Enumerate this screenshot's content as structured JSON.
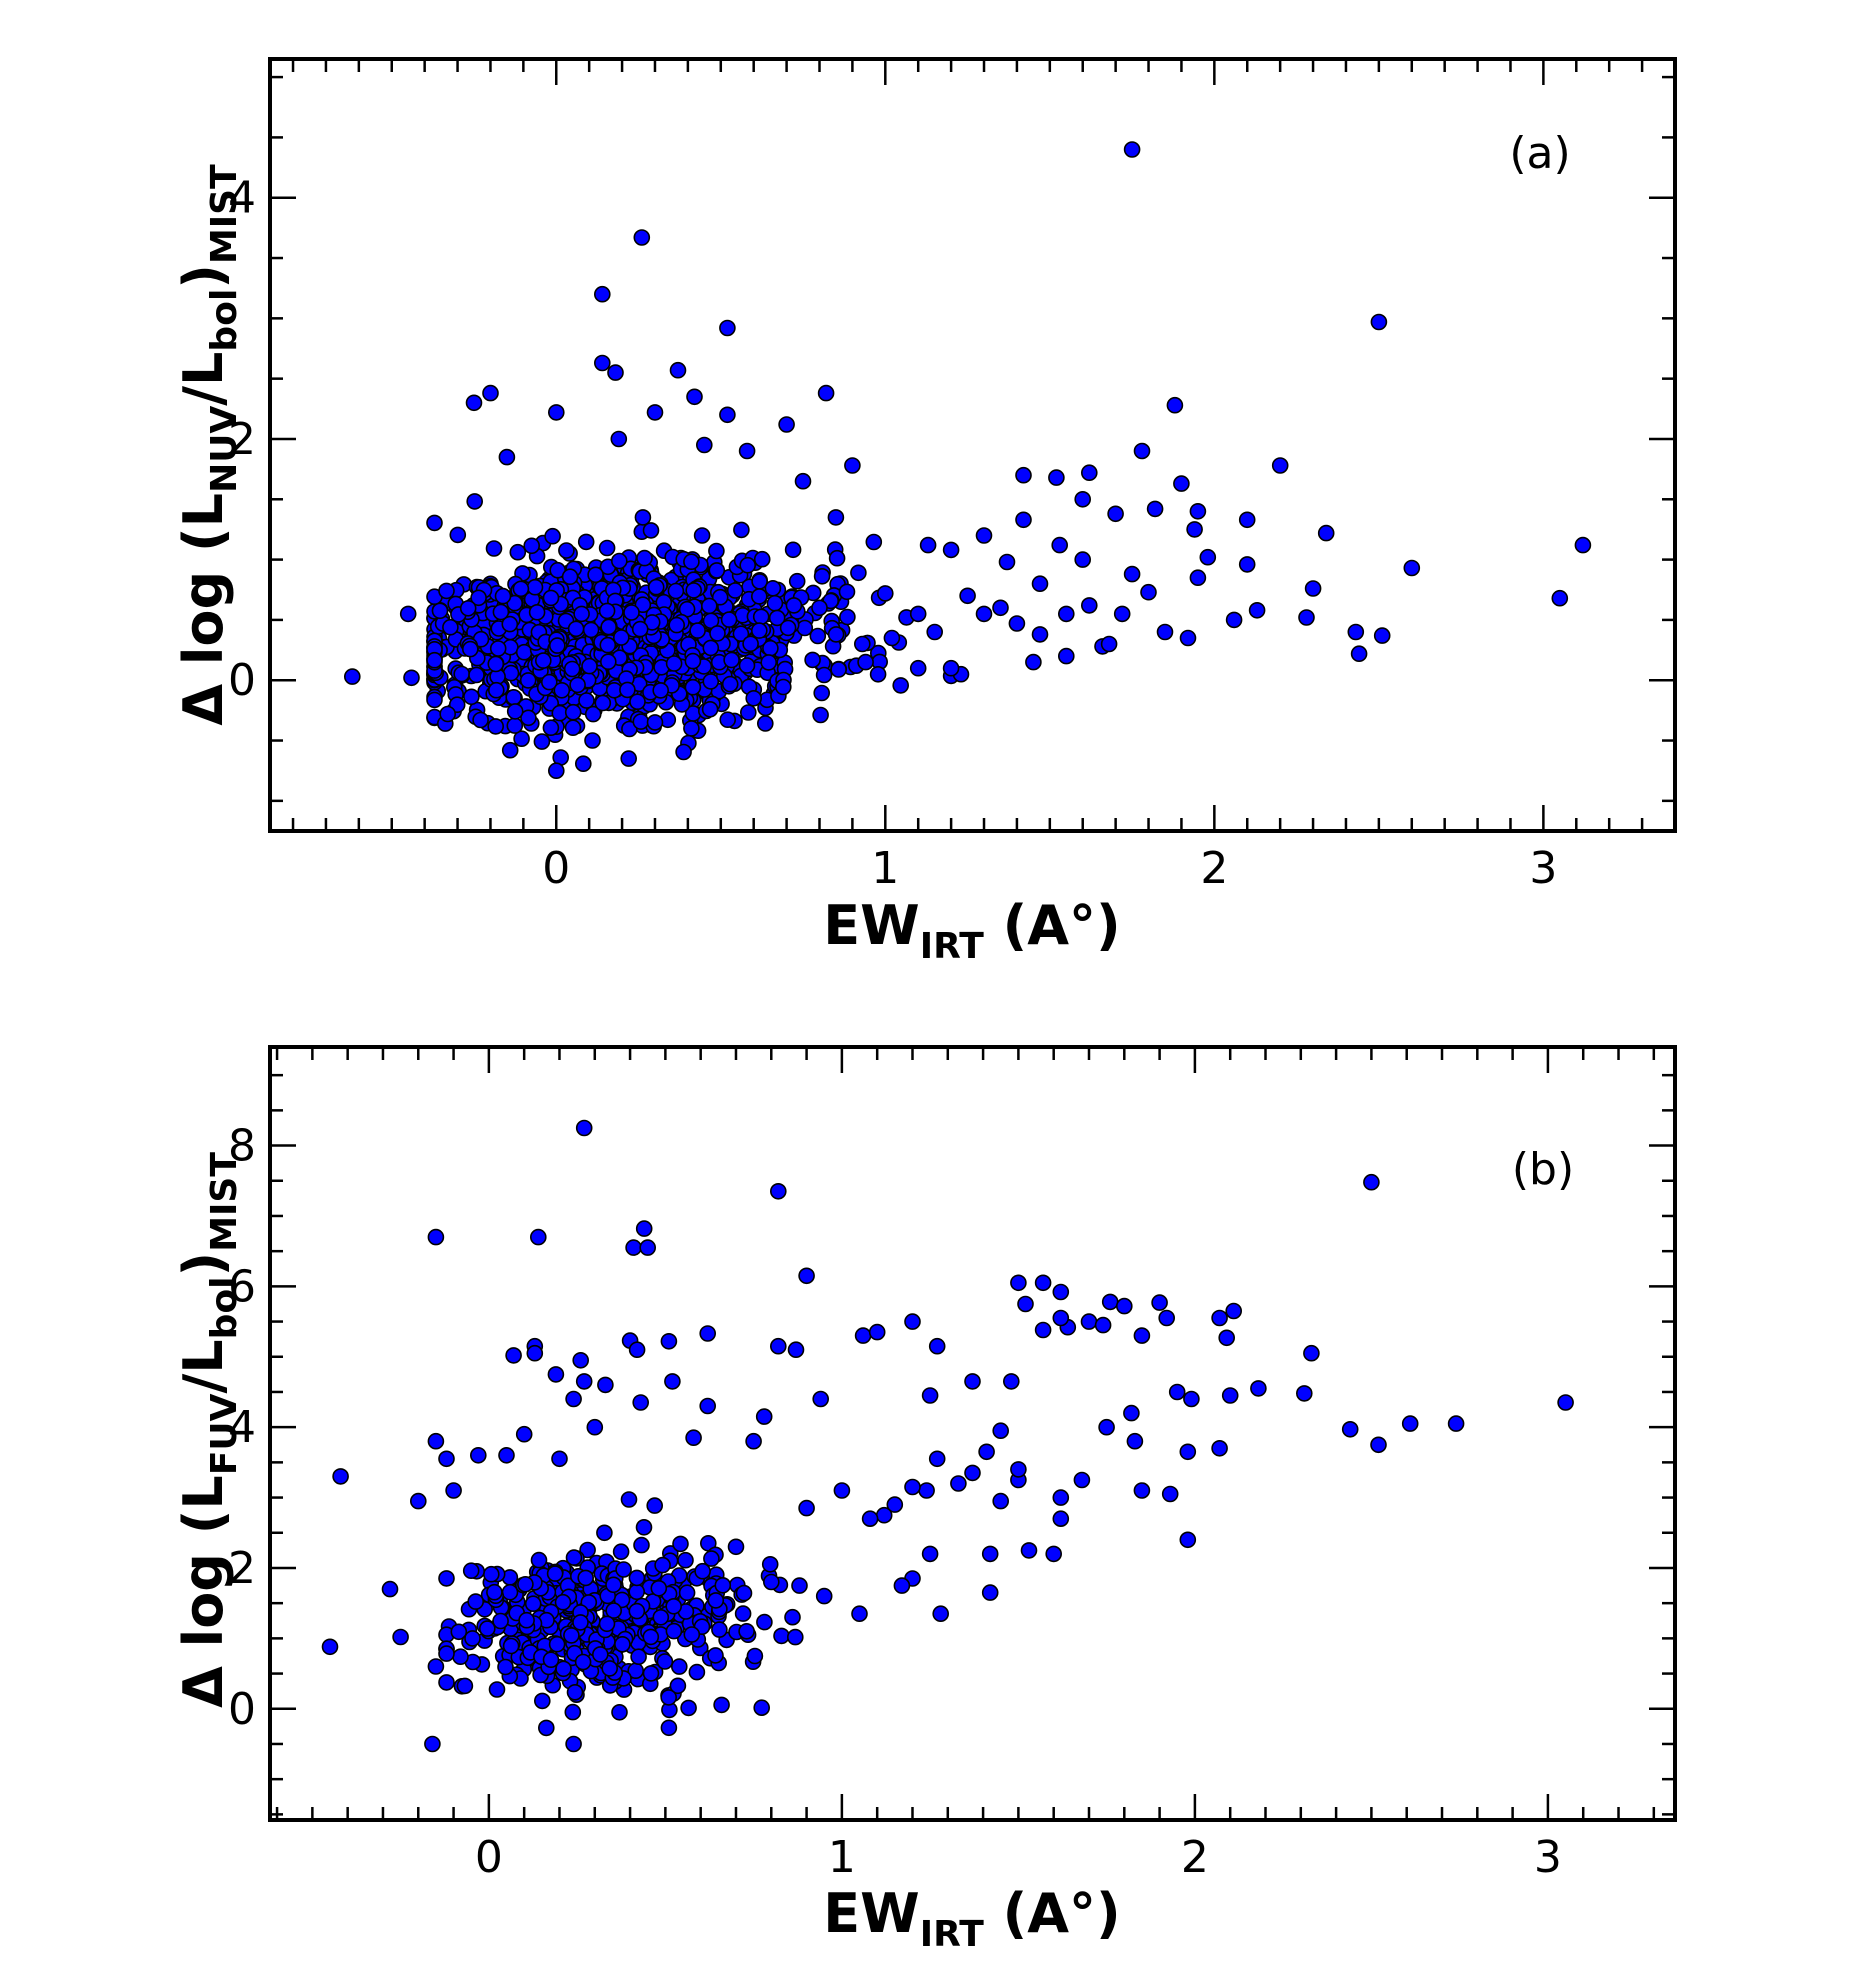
{
  "chart_data": [
    {
      "type": "scatter",
      "panel_label": "(a)",
      "xlabel": {
        "main": "EW",
        "sub": "IRT",
        "tail": " (A°)"
      },
      "ylabel": {
        "pre": "Δ log (L",
        "sub1": "NUV",
        "mid": "/L",
        "sub2": "bol",
        "post": ")",
        "sub3": "MIST"
      },
      "xlim": [
        -0.87,
        3.4
      ],
      "ylim": [
        -1.25,
        5.15
      ],
      "xticks": [
        0,
        1,
        2,
        3
      ],
      "yticks": [
        0,
        2,
        4
      ],
      "grid": false,
      "marker_color": "#0000ff",
      "cloud": {
        "n": 1500,
        "x_center": 0.2,
        "x_spread": 0.28,
        "y_center": 0.35,
        "y_spread": 0.32
      },
      "points": [
        [
          1.75,
          4.4
        ],
        [
          0.26,
          3.67
        ],
        [
          0.14,
          3.2
        ],
        [
          2.5,
          2.97
        ],
        [
          0.52,
          2.92
        ],
        [
          0.14,
          2.63
        ],
        [
          0.37,
          2.57
        ],
        [
          0.18,
          2.55
        ],
        [
          -0.2,
          2.38
        ],
        [
          -0.25,
          2.3
        ],
        [
          0.42,
          2.35
        ],
        [
          0.82,
          2.38
        ],
        [
          1.88,
          2.28
        ],
        [
          0.0,
          2.22
        ],
        [
          0.3,
          2.22
        ],
        [
          0.52,
          2.2
        ],
        [
          0.7,
          2.12
        ],
        [
          0.19,
          2.0
        ],
        [
          0.45,
          1.95
        ],
        [
          0.58,
          1.9
        ],
        [
          -0.15,
          1.85
        ],
        [
          1.78,
          1.9
        ],
        [
          0.9,
          1.78
        ],
        [
          1.42,
          1.7
        ],
        [
          1.62,
          1.72
        ],
        [
          2.2,
          1.78
        ],
        [
          1.9,
          1.63
        ],
        [
          0.75,
          1.65
        ],
        [
          1.52,
          1.68
        ],
        [
          1.82,
          1.42
        ],
        [
          1.95,
          1.4
        ],
        [
          2.1,
          1.33
        ],
        [
          2.34,
          1.22
        ],
        [
          1.3,
          1.2
        ],
        [
          1.42,
          1.33
        ],
        [
          1.13,
          1.12
        ],
        [
          1.2,
          1.08
        ],
        [
          1.7,
          1.38
        ],
        [
          1.6,
          1.5
        ],
        [
          1.94,
          1.25
        ],
        [
          1.98,
          1.02
        ],
        [
          2.1,
          0.96
        ],
        [
          2.6,
          0.93
        ],
        [
          3.12,
          1.12
        ],
        [
          2.3,
          0.76
        ],
        [
          3.05,
          0.68
        ],
        [
          2.13,
          0.58
        ],
        [
          2.06,
          0.5
        ],
        [
          2.28,
          0.52
        ],
        [
          2.43,
          0.4
        ],
        [
          2.51,
          0.37
        ],
        [
          2.44,
          0.22
        ],
        [
          1.92,
          0.35
        ],
        [
          1.85,
          0.4
        ],
        [
          1.75,
          0.88
        ],
        [
          1.53,
          1.12
        ],
        [
          1.47,
          0.8
        ],
        [
          1.66,
          0.28
        ],
        [
          1.68,
          0.3
        ],
        [
          1.55,
          0.2
        ],
        [
          1.45,
          0.15
        ],
        [
          1.35,
          0.6
        ],
        [
          1.1,
          0.1
        ],
        [
          1.23,
          0.05
        ],
        [
          0.93,
          0.3
        ],
        [
          1.02,
          0.35
        ],
        [
          1.4,
          0.47
        ],
        [
          1.3,
          0.55
        ],
        [
          1.2,
          0.1
        ],
        [
          0.94,
          0.15
        ],
        [
          -0.62,
          0.03
        ],
        [
          -0.45,
          0.55
        ],
        [
          -0.44,
          0.02
        ],
        [
          -0.33,
          -0.28
        ],
        [
          -0.23,
          -0.33
        ],
        [
          -0.14,
          -0.58
        ],
        [
          0.0,
          -0.75
        ],
        [
          0.11,
          -0.5
        ],
        [
          0.22,
          -0.65
        ],
        [
          0.3,
          -0.35
        ],
        [
          0.6,
          -0.15
        ],
        [
          0.8,
          0.6
        ],
        [
          1.0,
          0.72
        ],
        [
          1.55,
          0.55
        ],
        [
          1.62,
          0.62
        ],
        [
          1.72,
          0.55
        ],
        [
          1.47,
          0.38
        ],
        [
          1.37,
          0.98
        ],
        [
          1.6,
          1.0
        ],
        [
          1.8,
          0.73
        ],
        [
          1.95,
          0.85
        ],
        [
          1.1,
          0.55
        ],
        [
          1.25,
          0.7
        ],
        [
          1.15,
          0.4
        ],
        [
          0.85,
          1.35
        ]
      ]
    },
    {
      "type": "scatter",
      "panel_label": "(b)",
      "xlabel": {
        "main": "EW",
        "sub": "IRT",
        "tail": " (A°)"
      },
      "ylabel": {
        "pre": "Δ log (L",
        "sub1": "FUV",
        "mid": "/L",
        "sub2": "bol",
        "post": ")",
        "sub3": "MIST"
      },
      "xlim": [
        -0.62,
        3.36
      ],
      "ylim": [
        -1.58,
        9.4
      ],
      "xticks": [
        0,
        1,
        2,
        3
      ],
      "yticks": [
        0,
        2,
        4,
        6,
        8
      ],
      "grid": false,
      "marker_color": "#0000ff",
      "cloud": {
        "n": 480,
        "x_center": 0.3,
        "x_spread": 0.2,
        "y_center": 1.25,
        "y_spread": 0.5
      },
      "points": [
        [
          0.27,
          8.25
        ],
        [
          0.82,
          7.35
        ],
        [
          2.5,
          7.48
        ],
        [
          -0.15,
          6.7
        ],
        [
          0.14,
          6.7
        ],
        [
          0.44,
          6.82
        ],
        [
          0.41,
          6.55
        ],
        [
          0.45,
          6.55
        ],
        [
          0.9,
          6.15
        ],
        [
          1.5,
          6.05
        ],
        [
          1.57,
          6.05
        ],
        [
          1.62,
          5.92
        ],
        [
          1.52,
          5.75
        ],
        [
          1.76,
          5.78
        ],
        [
          1.8,
          5.72
        ],
        [
          1.9,
          5.77
        ],
        [
          2.11,
          5.65
        ],
        [
          1.64,
          5.42
        ],
        [
          1.7,
          5.5
        ],
        [
          1.74,
          5.45
        ],
        [
          1.92,
          5.55
        ],
        [
          2.07,
          5.55
        ],
        [
          1.57,
          5.38
        ],
        [
          1.62,
          5.55
        ],
        [
          1.85,
          5.3
        ],
        [
          2.09,
          5.27
        ],
        [
          1.2,
          5.5
        ],
        [
          1.06,
          5.3
        ],
        [
          1.1,
          5.35
        ],
        [
          0.62,
          5.33
        ],
        [
          0.4,
          5.23
        ],
        [
          0.51,
          5.22
        ],
        [
          0.13,
          5.15
        ],
        [
          0.82,
          5.15
        ],
        [
          0.87,
          5.1
        ],
        [
          1.27,
          5.15
        ],
        [
          0.07,
          5.02
        ],
        [
          0.13,
          5.05
        ],
        [
          0.26,
          4.95
        ],
        [
          0.42,
          5.1
        ],
        [
          2.33,
          5.05
        ],
        [
          2.18,
          4.55
        ],
        [
          2.1,
          4.45
        ],
        [
          2.31,
          4.48
        ],
        [
          2.44,
          3.97
        ],
        [
          2.61,
          4.05
        ],
        [
          2.74,
          4.05
        ],
        [
          3.05,
          4.35
        ],
        [
          2.52,
          3.75
        ],
        [
          1.95,
          4.5
        ],
        [
          1.99,
          4.4
        ],
        [
          1.82,
          4.2
        ],
        [
          1.83,
          3.8
        ],
        [
          1.98,
          3.65
        ],
        [
          2.07,
          3.7
        ],
        [
          1.85,
          3.1
        ],
        [
          1.93,
          3.05
        ],
        [
          1.98,
          2.4
        ],
        [
          1.75,
          4.0
        ],
        [
          1.68,
          3.25
        ],
        [
          1.62,
          3.0
        ],
        [
          1.62,
          2.7
        ],
        [
          1.5,
          3.25
        ],
        [
          1.48,
          4.65
        ],
        [
          1.45,
          3.95
        ],
        [
          1.41,
          3.65
        ],
        [
          1.37,
          4.65
        ],
        [
          1.33,
          3.2
        ],
        [
          1.25,
          4.45
        ],
        [
          1.27,
          3.55
        ],
        [
          1.24,
          3.1
        ],
        [
          1.25,
          2.2
        ],
        [
          1.2,
          3.15
        ],
        [
          1.15,
          2.9
        ],
        [
          1.12,
          2.75
        ],
        [
          1.08,
          2.7
        ],
        [
          1.05,
          1.35
        ],
        [
          1.28,
          1.35
        ],
        [
          1.2,
          1.85
        ],
        [
          1.17,
          1.75
        ],
        [
          1.42,
          1.65
        ],
        [
          1.53,
          2.25
        ],
        [
          1.6,
          2.2
        ],
        [
          1.42,
          2.2
        ],
        [
          1.45,
          2.95
        ],
        [
          1.5,
          3.4
        ],
        [
          1.37,
          3.35
        ],
        [
          0.94,
          4.4
        ],
        [
          0.78,
          4.15
        ],
        [
          0.62,
          4.3
        ],
        [
          0.52,
          4.65
        ],
        [
          0.43,
          4.35
        ],
        [
          0.33,
          4.6
        ],
        [
          0.27,
          4.65
        ],
        [
          0.24,
          4.4
        ],
        [
          0.19,
          4.75
        ],
        [
          -0.03,
          3.6
        ],
        [
          -0.12,
          3.55
        ],
        [
          -0.15,
          3.8
        ],
        [
          -0.42,
          3.3
        ],
        [
          -0.2,
          2.95
        ],
        [
          -0.1,
          3.1
        ],
        [
          -0.45,
          0.88
        ],
        [
          -0.25,
          1.02
        ],
        [
          -0.28,
          1.7
        ],
        [
          -0.15,
          0.6
        ],
        [
          -0.16,
          -0.5
        ],
        [
          0.24,
          -0.5
        ],
        [
          0.51,
          -0.27
        ],
        [
          0.37,
          -0.05
        ],
        [
          0.3,
          4.0
        ],
        [
          0.58,
          3.85
        ],
        [
          0.75,
          3.8
        ],
        [
          0.1,
          3.9
        ],
        [
          0.05,
          3.6
        ],
        [
          0.2,
          3.55
        ],
        [
          0.9,
          2.85
        ],
        [
          1.0,
          3.1
        ],
        [
          0.95,
          1.6
        ],
        [
          0.88,
          1.75
        ],
        [
          0.86,
          1.3
        ],
        [
          0.7,
          2.3
        ],
        [
          0.8,
          1.8
        ],
        [
          0.73,
          1.1
        ]
      ]
    }
  ]
}
